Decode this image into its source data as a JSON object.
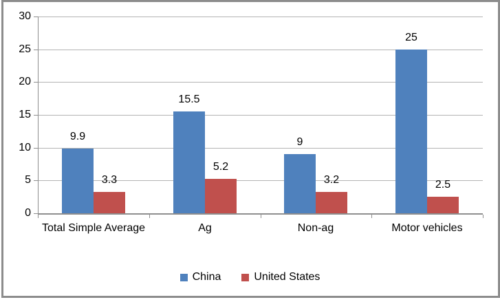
{
  "chart_data": {
    "type": "bar",
    "title": "",
    "xlabel": "",
    "ylabel": "",
    "categories": [
      "Total Simple Average",
      "Ag",
      "Non-ag",
      "Motor vehicles"
    ],
    "series": [
      {
        "name": "China",
        "color": "#4F81BD",
        "values": [
          9.9,
          15.5,
          9,
          25
        ]
      },
      {
        "name": "United States",
        "color": "#C0504D",
        "values": [
          3.3,
          5.2,
          3.2,
          2.5
        ]
      }
    ],
    "data_labels_visible": true,
    "ylim": [
      0,
      30
    ],
    "yticks": [
      0,
      5,
      10,
      15,
      20,
      25,
      30
    ],
    "grid": true,
    "legend_position": "bottom",
    "colors": {
      "text": "#000000",
      "gridline": "#b3b3b3",
      "axis": "#8e8e8e",
      "frame_border": "#8c8c8c",
      "background": "#ffffff"
    }
  }
}
